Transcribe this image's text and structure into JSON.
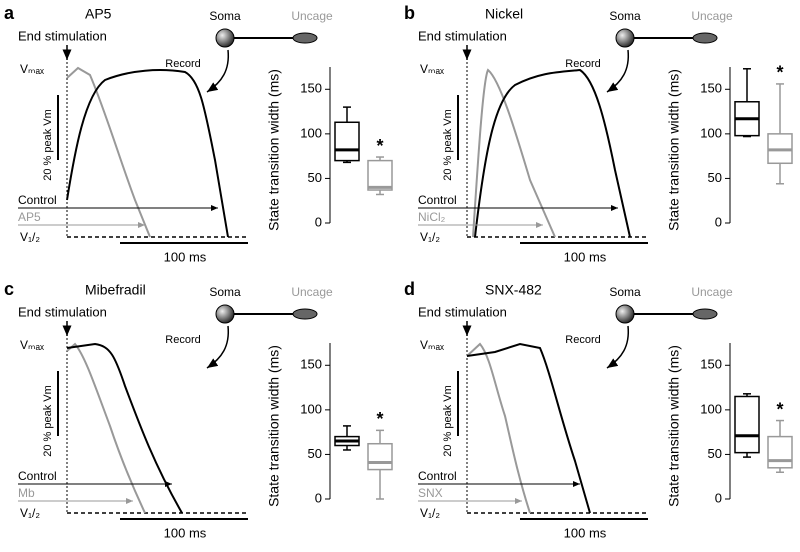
{
  "chart_data": [
    {
      "type": "box",
      "panel_label": "a",
      "title": "AP5",
      "stimulus_label": "End stimulation",
      "soma_label": "Soma",
      "uncage_label": "Uncage",
      "record_label": "Record",
      "vmax_label": "Vₘₐₓ",
      "vhalf_label": "V₁/₂",
      "amplitude_scale_label": "20 % peak Vm",
      "time_scale_label": "100 ms",
      "y_label": "State transition width (ms)",
      "ylim": [
        0,
        175
      ],
      "yticks": [
        0,
        50,
        100,
        150
      ],
      "series": [
        {
          "name": "Control",
          "color": "#000000",
          "whisker_low": 68,
          "q1": 70,
          "median": 82,
          "q3": 113,
          "whisker_high": 130
        },
        {
          "name": "AP5",
          "color": "#999999",
          "whisker_low": 32,
          "q1": 37,
          "median": 40,
          "q3": 70,
          "whisker_high": 74,
          "significance": "*"
        }
      ]
    },
    {
      "type": "box",
      "panel_label": "b",
      "title": "Nickel",
      "stimulus_label": "End stimulation",
      "soma_label": "Soma",
      "uncage_label": "Uncage",
      "record_label": "Record",
      "vmax_label": "Vₘₐₓ",
      "vhalf_label": "V₁/₂",
      "amplitude_scale_label": "20 % peak Vm",
      "time_scale_label": "100 ms",
      "y_label": "State transition width (ms)",
      "ylim": [
        0,
        175
      ],
      "yticks": [
        0,
        50,
        100,
        150
      ],
      "series": [
        {
          "name": "Control",
          "color": "#000000",
          "whisker_low": 97,
          "q1": 98,
          "median": 117,
          "q3": 136,
          "whisker_high": 173
        },
        {
          "name": "NiCl₂",
          "color": "#999999",
          "whisker_low": 44,
          "q1": 67,
          "median": 82,
          "q3": 100,
          "whisker_high": 156,
          "significance": "*"
        }
      ]
    },
    {
      "type": "box",
      "panel_label": "c",
      "title": "Mibefradil",
      "stimulus_label": "End stimulation",
      "soma_label": "Soma",
      "uncage_label": "Uncage",
      "record_label": "Record",
      "vmax_label": "Vₘₐₓ",
      "vhalf_label": "V₁/₂",
      "amplitude_scale_label": "20 % peak Vm",
      "time_scale_label": "100 ms",
      "y_label": "State transition width (ms)",
      "ylim": [
        0,
        175
      ],
      "yticks": [
        0,
        50,
        100,
        150
      ],
      "series": [
        {
          "name": "Control",
          "color": "#000000",
          "whisker_low": 55,
          "q1": 60,
          "median": 65,
          "q3": 70,
          "whisker_high": 82
        },
        {
          "name": "Mb",
          "color": "#999999",
          "whisker_low": 0,
          "q1": 33,
          "median": 41,
          "q3": 62,
          "whisker_high": 77,
          "significance": "*"
        }
      ]
    },
    {
      "type": "box",
      "panel_label": "d",
      "title": "SNX-482",
      "stimulus_label": "End stimulation",
      "soma_label": "Soma",
      "uncage_label": "Uncage",
      "record_label": "Record",
      "vmax_label": "Vₘₐₓ",
      "vhalf_label": "V₁/₂",
      "amplitude_scale_label": "20 % peak Vm",
      "time_scale_label": "100 ms",
      "y_label": "State transition width (ms)",
      "ylim": [
        0,
        175
      ],
      "yticks": [
        0,
        50,
        100,
        150
      ],
      "series": [
        {
          "name": "Control",
          "color": "#000000",
          "whisker_low": 47,
          "q1": 52,
          "median": 71,
          "q3": 115,
          "whisker_high": 118
        },
        {
          "name": "SNX",
          "color": "#999999",
          "whisker_low": 30,
          "q1": 35,
          "median": 43,
          "q3": 70,
          "whisker_high": 88,
          "significance": "*"
        }
      ]
    }
  ]
}
